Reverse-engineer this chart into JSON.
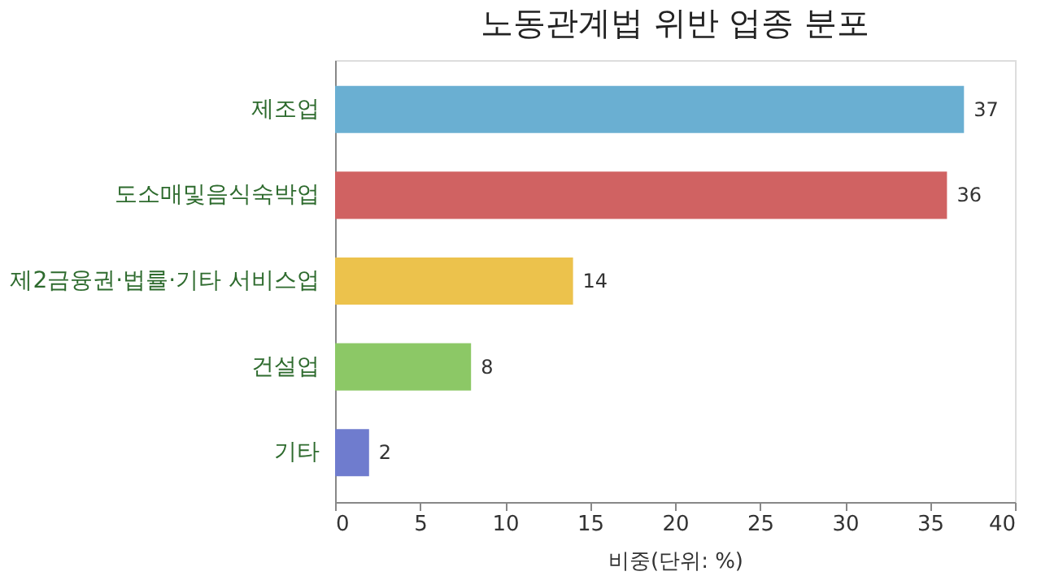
{
  "chart_data": {
    "type": "bar",
    "orientation": "horizontal",
    "title": "노동관계법 위반 업종 분포",
    "xlabel": "비중(단위: %)",
    "categories": [
      "제조업",
      "도소매및음식숙박업",
      "제2금융권·법률·기타 서비스업",
      "건설업",
      "기타"
    ],
    "values": [
      37,
      36,
      14,
      8,
      2
    ],
    "colors": [
      "#6aafd2",
      "#d06262",
      "#ecc24c",
      "#8cc866",
      "#6f7cce"
    ],
    "xlim": [
      0,
      40
    ],
    "xticks": [
      0,
      5,
      10,
      15,
      20,
      25,
      30,
      35,
      40
    ],
    "grid": false,
    "data_labels": true
  }
}
